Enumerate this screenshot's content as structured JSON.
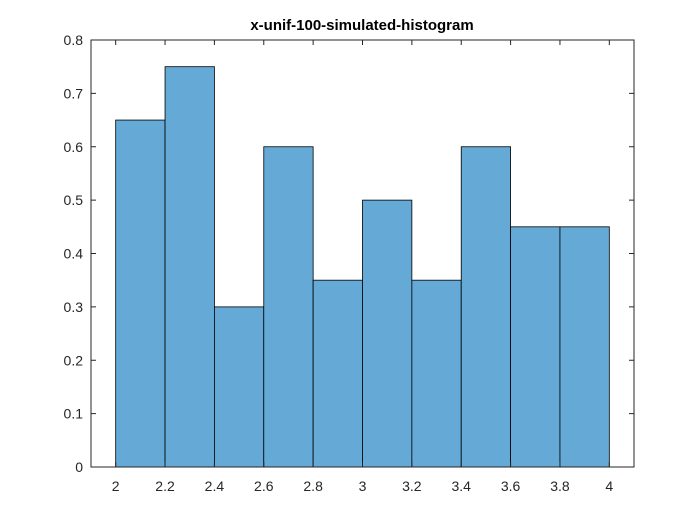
{
  "chart_data": {
    "type": "bar",
    "title": "x-unif-100-simulated-histogram",
    "xlabel": "",
    "ylabel": "",
    "bin_edges": [
      2.0,
      2.2,
      2.4,
      2.6,
      2.8,
      3.0,
      3.2,
      3.4,
      3.6,
      3.8,
      4.0
    ],
    "values": [
      0.65,
      0.75,
      0.3,
      0.6,
      0.35,
      0.5,
      0.35,
      0.6,
      0.45,
      0.45
    ],
    "xlim": [
      1.9,
      4.1
    ],
    "ylim": [
      0,
      0.8
    ],
    "xticks": [
      2,
      2.2,
      2.4,
      2.6,
      2.8,
      3,
      3.2,
      3.4,
      3.6,
      3.8,
      4
    ],
    "xtick_labels": [
      "2",
      "2.2",
      "2.4",
      "2.6",
      "2.8",
      "3",
      "3.2",
      "3.4",
      "3.6",
      "3.8",
      "4"
    ],
    "yticks": [
      0,
      0.1,
      0.2,
      0.3,
      0.4,
      0.5,
      0.6,
      0.7,
      0.8
    ],
    "ytick_labels": [
      "0",
      "0.1",
      "0.2",
      "0.3",
      "0.4",
      "0.5",
      "0.6",
      "0.7",
      "0.8"
    ],
    "grid": false,
    "bar_color": "#65A9D7",
    "bar_edge_color": "#000000",
    "axis_color": "#262626"
  }
}
